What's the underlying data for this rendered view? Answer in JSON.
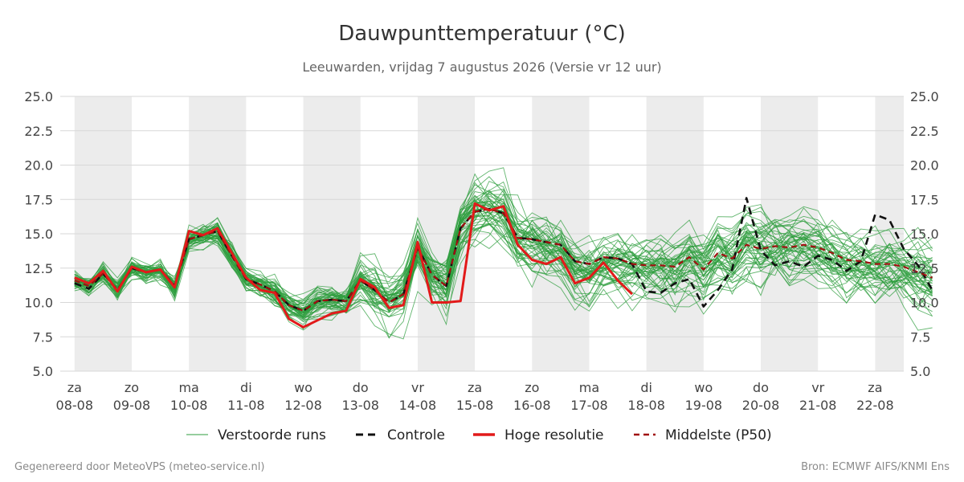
{
  "chart_data": {
    "type": "line",
    "title": "Dauwpunttemperatuur (°C)",
    "subtitle": "Leeuwarden, vrijdag  7 augustus 2026 (Versie vr 12 uur)",
    "xlabel": "",
    "ylabel": "",
    "ylim": [
      5.0,
      25.0
    ],
    "y_ticks": [
      "5.0",
      "7.5",
      "10.0",
      "12.5",
      "15.0",
      "17.5",
      "20.0",
      "22.5",
      "25.0"
    ],
    "x_range_days": [
      -0.25,
      14.5
    ],
    "day_ticks": [
      {
        "day": "za",
        "date": "08-08"
      },
      {
        "day": "zo",
        "date": "09-08"
      },
      {
        "day": "ma",
        "date": "10-08"
      },
      {
        "day": "di",
        "date": "11-08"
      },
      {
        "day": "wo",
        "date": "12-08"
      },
      {
        "day": "do",
        "date": "13-08"
      },
      {
        "day": "vr",
        "date": "14-08"
      },
      {
        "day": "za",
        "date": "15-08"
      },
      {
        "day": "zo",
        "date": "16-08"
      },
      {
        "day": "ma",
        "date": "17-08"
      },
      {
        "day": "di",
        "date": "18-08"
      },
      {
        "day": "wo",
        "date": "19-08"
      },
      {
        "day": "do",
        "date": "20-08"
      },
      {
        "day": "vr",
        "date": "21-08"
      },
      {
        "day": "za",
        "date": "22-08"
      }
    ],
    "grid": true,
    "legend_position": "bottom",
    "colors": {
      "ensemble": "#2e9e3e",
      "controle": "#111111",
      "hoge_resolutie": "#e21a1a",
      "middelste": "#a01010",
      "weekend_band": "#ececec"
    },
    "series": [
      {
        "name": "Controle",
        "time_step_days": 0.25,
        "values": [
          11.4,
          11.0,
          12.1,
          10.9,
          12.5,
          12.2,
          12.4,
          11.2,
          14.6,
          14.9,
          15.2,
          13.4,
          11.7,
          11.3,
          10.8,
          9.8,
          9.4,
          10.1,
          10.2,
          10.1,
          11.6,
          10.9,
          10.0,
          10.6,
          14.0,
          12.0,
          11.2,
          15.4,
          16.6,
          16.8,
          16.5,
          14.7,
          14.6,
          14.4,
          14.2,
          13.0,
          12.8,
          13.3,
          13.2,
          12.8,
          10.8,
          10.7,
          11.4,
          11.7,
          9.7,
          10.9,
          12.4,
          17.6,
          13.8,
          12.7,
          13.0,
          12.6,
          13.4,
          13.1,
          12.3,
          13.0,
          16.4,
          16.0,
          13.9,
          12.7,
          10.9
        ]
      },
      {
        "name": "Hoge resolutie",
        "time_step_days": 0.25,
        "values": [
          11.8,
          11.4,
          12.3,
          10.8,
          12.6,
          12.2,
          12.4,
          11.1,
          15.2,
          14.9,
          15.4,
          13.6,
          11.8,
          10.9,
          10.7,
          8.8,
          8.2,
          8.7,
          9.2,
          9.4,
          11.7,
          11.1,
          9.6,
          9.8,
          14.4,
          10.0,
          10.0,
          10.1,
          17.2,
          16.7,
          17.0,
          14.2,
          13.1,
          12.8,
          13.3,
          11.4,
          11.8,
          12.9,
          11.6,
          10.6
        ]
      },
      {
        "name": "Middelste (P50)",
        "time_step_days": 0.25,
        "values": [
          11.6,
          11.2,
          12.1,
          10.9,
          12.5,
          12.2,
          12.4,
          11.2,
          14.6,
          14.9,
          15.2,
          13.4,
          11.7,
          11.3,
          10.8,
          9.8,
          9.4,
          10.1,
          10.2,
          10.1,
          11.6,
          10.9,
          10.0,
          10.6,
          14.0,
          12.0,
          11.2,
          15.4,
          16.6,
          16.8,
          16.5,
          14.7,
          14.6,
          14.4,
          14.2,
          13.0,
          12.8,
          13.3,
          13.2,
          12.8,
          12.7,
          12.7,
          12.6,
          13.3,
          12.4,
          13.6,
          13.2,
          14.2,
          13.9,
          14.1,
          14.0,
          14.2,
          14.0,
          13.6,
          13.1,
          13.0,
          12.8,
          12.8,
          12.6,
          12.2,
          11.8
        ]
      }
    ],
    "ensemble": {
      "name": "Verstoorde runs",
      "members": 50,
      "time_step_days": 0.25,
      "values_summary": "50 perturbed members spreading around the median, roughly 7.5 to 20.0 °C after 13-08"
    },
    "legend": [
      {
        "label": "Verstoorde runs",
        "key": "ensemble",
        "style": "thin"
      },
      {
        "label": "Controle",
        "key": "controle",
        "style": "dashed"
      },
      {
        "label": "Hoge resolutie",
        "key": "hoge_resolutie",
        "style": "solid"
      },
      {
        "label": "Middelste (P50)",
        "key": "middelste",
        "style": "dashed"
      }
    ]
  },
  "footer": {
    "left": "Gegenereerd door MeteoVPS (meteo-service.nl)",
    "right": "Bron: ECMWF AIFS/KNMI Ens"
  }
}
